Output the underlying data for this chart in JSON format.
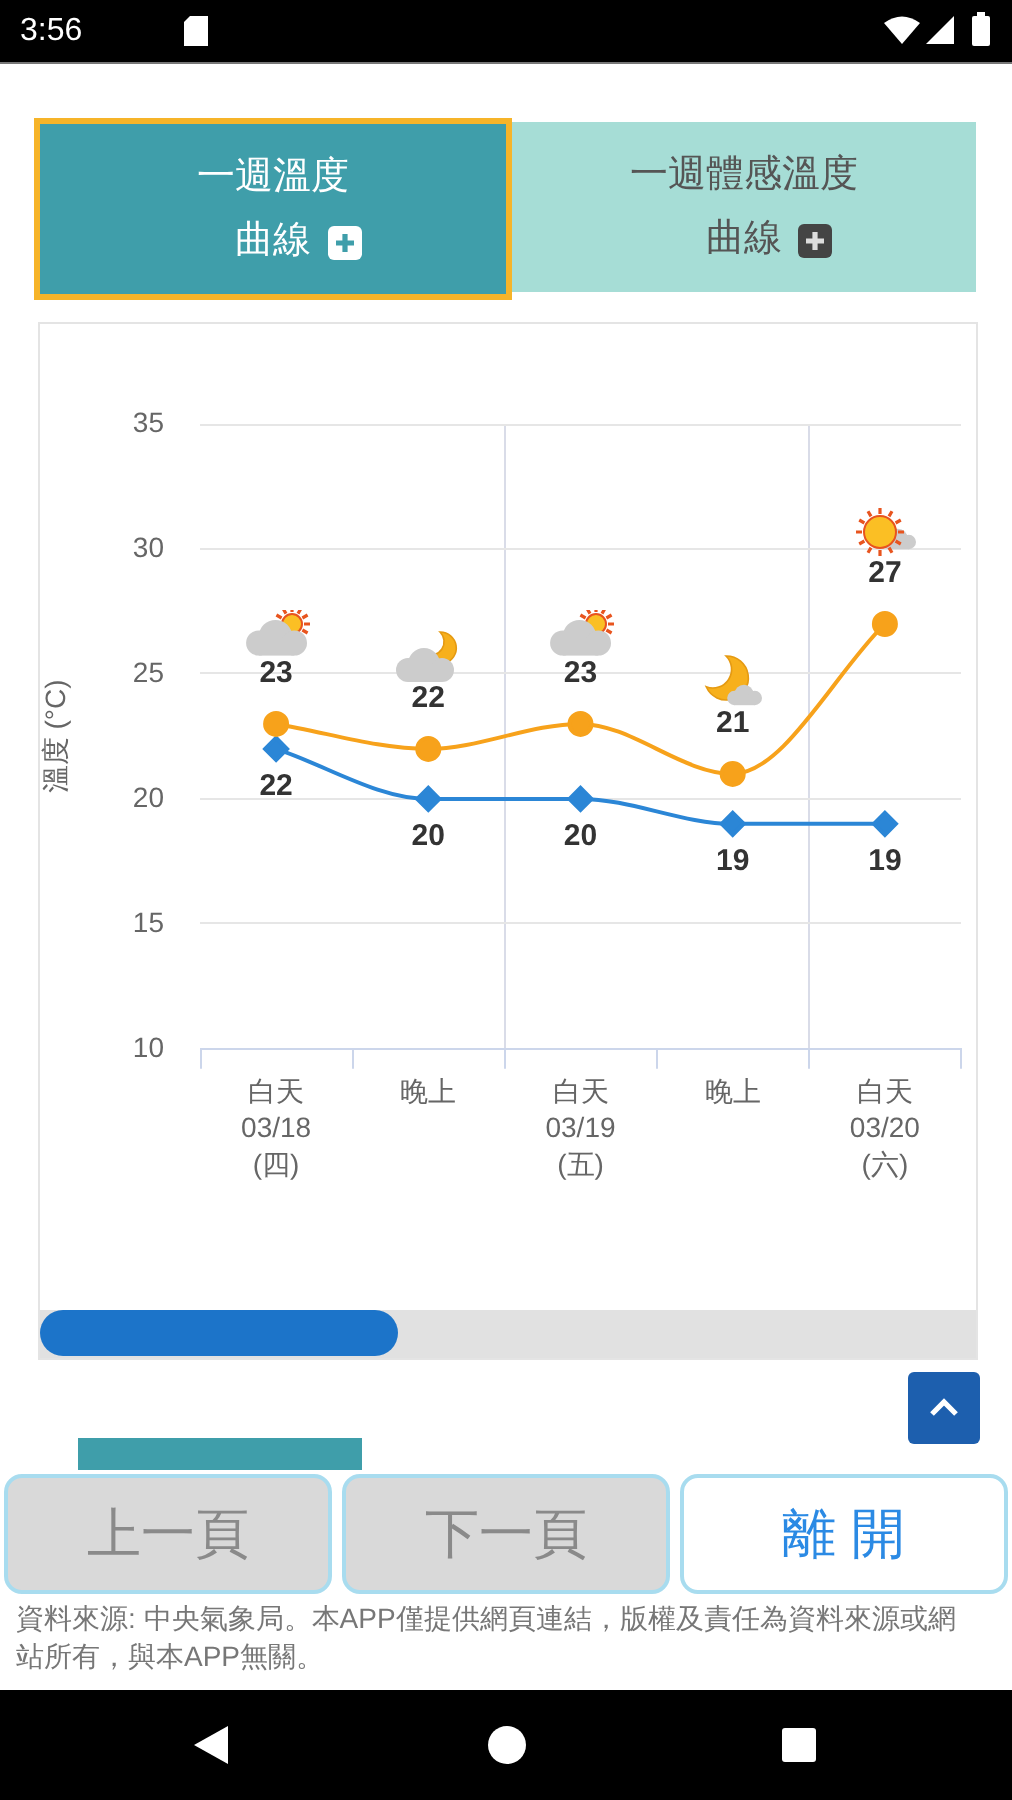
{
  "chart_data": {
    "type": "line",
    "title": "一週溫度曲線",
    "ylabel": "溫度 (°C)",
    "categories": [
      "白天\n03/18\n(四)",
      "晚上",
      "白天\n03/19\n(五)",
      "晚上",
      "白天\n03/20\n(六)"
    ],
    "series": [
      {
        "color": "#f7a21b",
        "marker": "circle",
        "values": [
          23,
          22,
          23,
          21,
          27
        ]
      },
      {
        "color": "#2b86d6",
        "marker": "diamond",
        "values": [
          22,
          20,
          20,
          19,
          19
        ]
      }
    ],
    "ylim": [
      10,
      35
    ],
    "yticks": [
      10,
      15,
      20,
      25,
      30,
      35
    ],
    "grid": true,
    "data_labels": true,
    "annotations": [
      "一週體感溫度曲線",
      "上一頁",
      "下一頁",
      "離 開",
      "資料來源: 中央氣象局。本APP僅提供網頁連結，版權及責任為資料來源或網站所有，與本APP無關。",
      "3:56"
    ]
  }
}
